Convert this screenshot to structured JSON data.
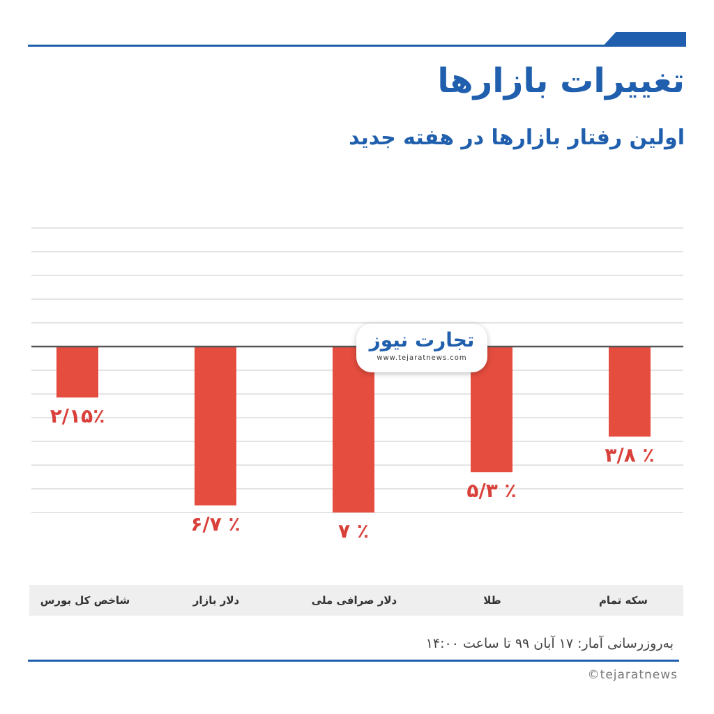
{
  "header": {
    "title": "تغییرات بازارها",
    "subtitle": "اولین رفتار بازارها در هفته جدید"
  },
  "logo": {
    "name": "تجارت نیوز",
    "url": "www.tejaratnews.com"
  },
  "colors": {
    "brand_blue": "#1f5fad",
    "bar_red": "#e54d3e",
    "label_red": "#d9403a"
  },
  "chart_data": {
    "type": "bar",
    "orientation": "vertical",
    "direction": "rtl",
    "categories": [
      "سکه تمام",
      "طلا",
      "دلار صرافی ملی",
      "دلار بازار",
      "شاخص کل بورس"
    ],
    "values": [
      -3.8,
      -5.3,
      -7,
      -6.7,
      -2.15
    ],
    "data_labels": [
      "۳/۸ ٪",
      "۵/۳ ٪",
      "۷ ٪",
      "۶/۷ ٪",
      "۲/۱۵٪"
    ],
    "ylim": [
      -7,
      5
    ],
    "grid": true,
    "legend": "none"
  },
  "footer": {
    "source": "به‌روزرسانی آمار: ۱۷ آبان ۹۹ تا ساعت ۱۴:۰۰",
    "copyright": "©tejaratnews"
  }
}
